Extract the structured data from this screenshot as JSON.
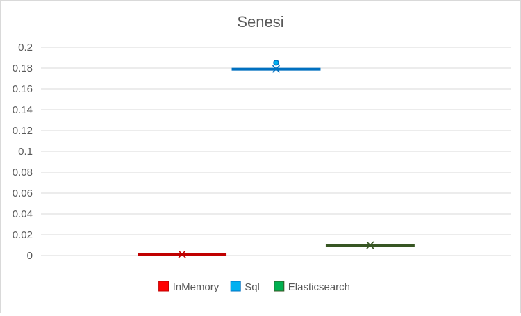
{
  "chart_data": {
    "type": "box",
    "title": "Senesi",
    "xlabel": "",
    "ylabel": "",
    "ylim": [
      0,
      0.2
    ],
    "yticks": [
      "0",
      "0.02",
      "0.04",
      "0.06",
      "0.08",
      "0.1",
      "0.12",
      "0.14",
      "0.16",
      "0.18",
      "0.2"
    ],
    "grid": true,
    "legend_position": "bottom",
    "series": [
      {
        "name": "InMemory",
        "color": "#ff0000",
        "line_color": "#c00000",
        "marker_color": "#c00000",
        "q1": 0.0012,
        "median": 0.0013,
        "q3": 0.0014,
        "mean": 0.0013,
        "outliers": []
      },
      {
        "name": "Sql",
        "color": "#00b0f0",
        "line_color": "#0070c0",
        "marker_color": "#0070c0",
        "q1": 0.1783,
        "median": 0.1788,
        "q3": 0.1795,
        "mean": 0.1792,
        "outliers": [
          0.1852
        ]
      },
      {
        "name": "Elasticsearch",
        "color": "#00b050",
        "line_color": "#375623",
        "marker_color": "#375623",
        "q1": 0.0098,
        "median": 0.01,
        "q3": 0.0102,
        "mean": 0.01,
        "outliers": []
      }
    ]
  }
}
